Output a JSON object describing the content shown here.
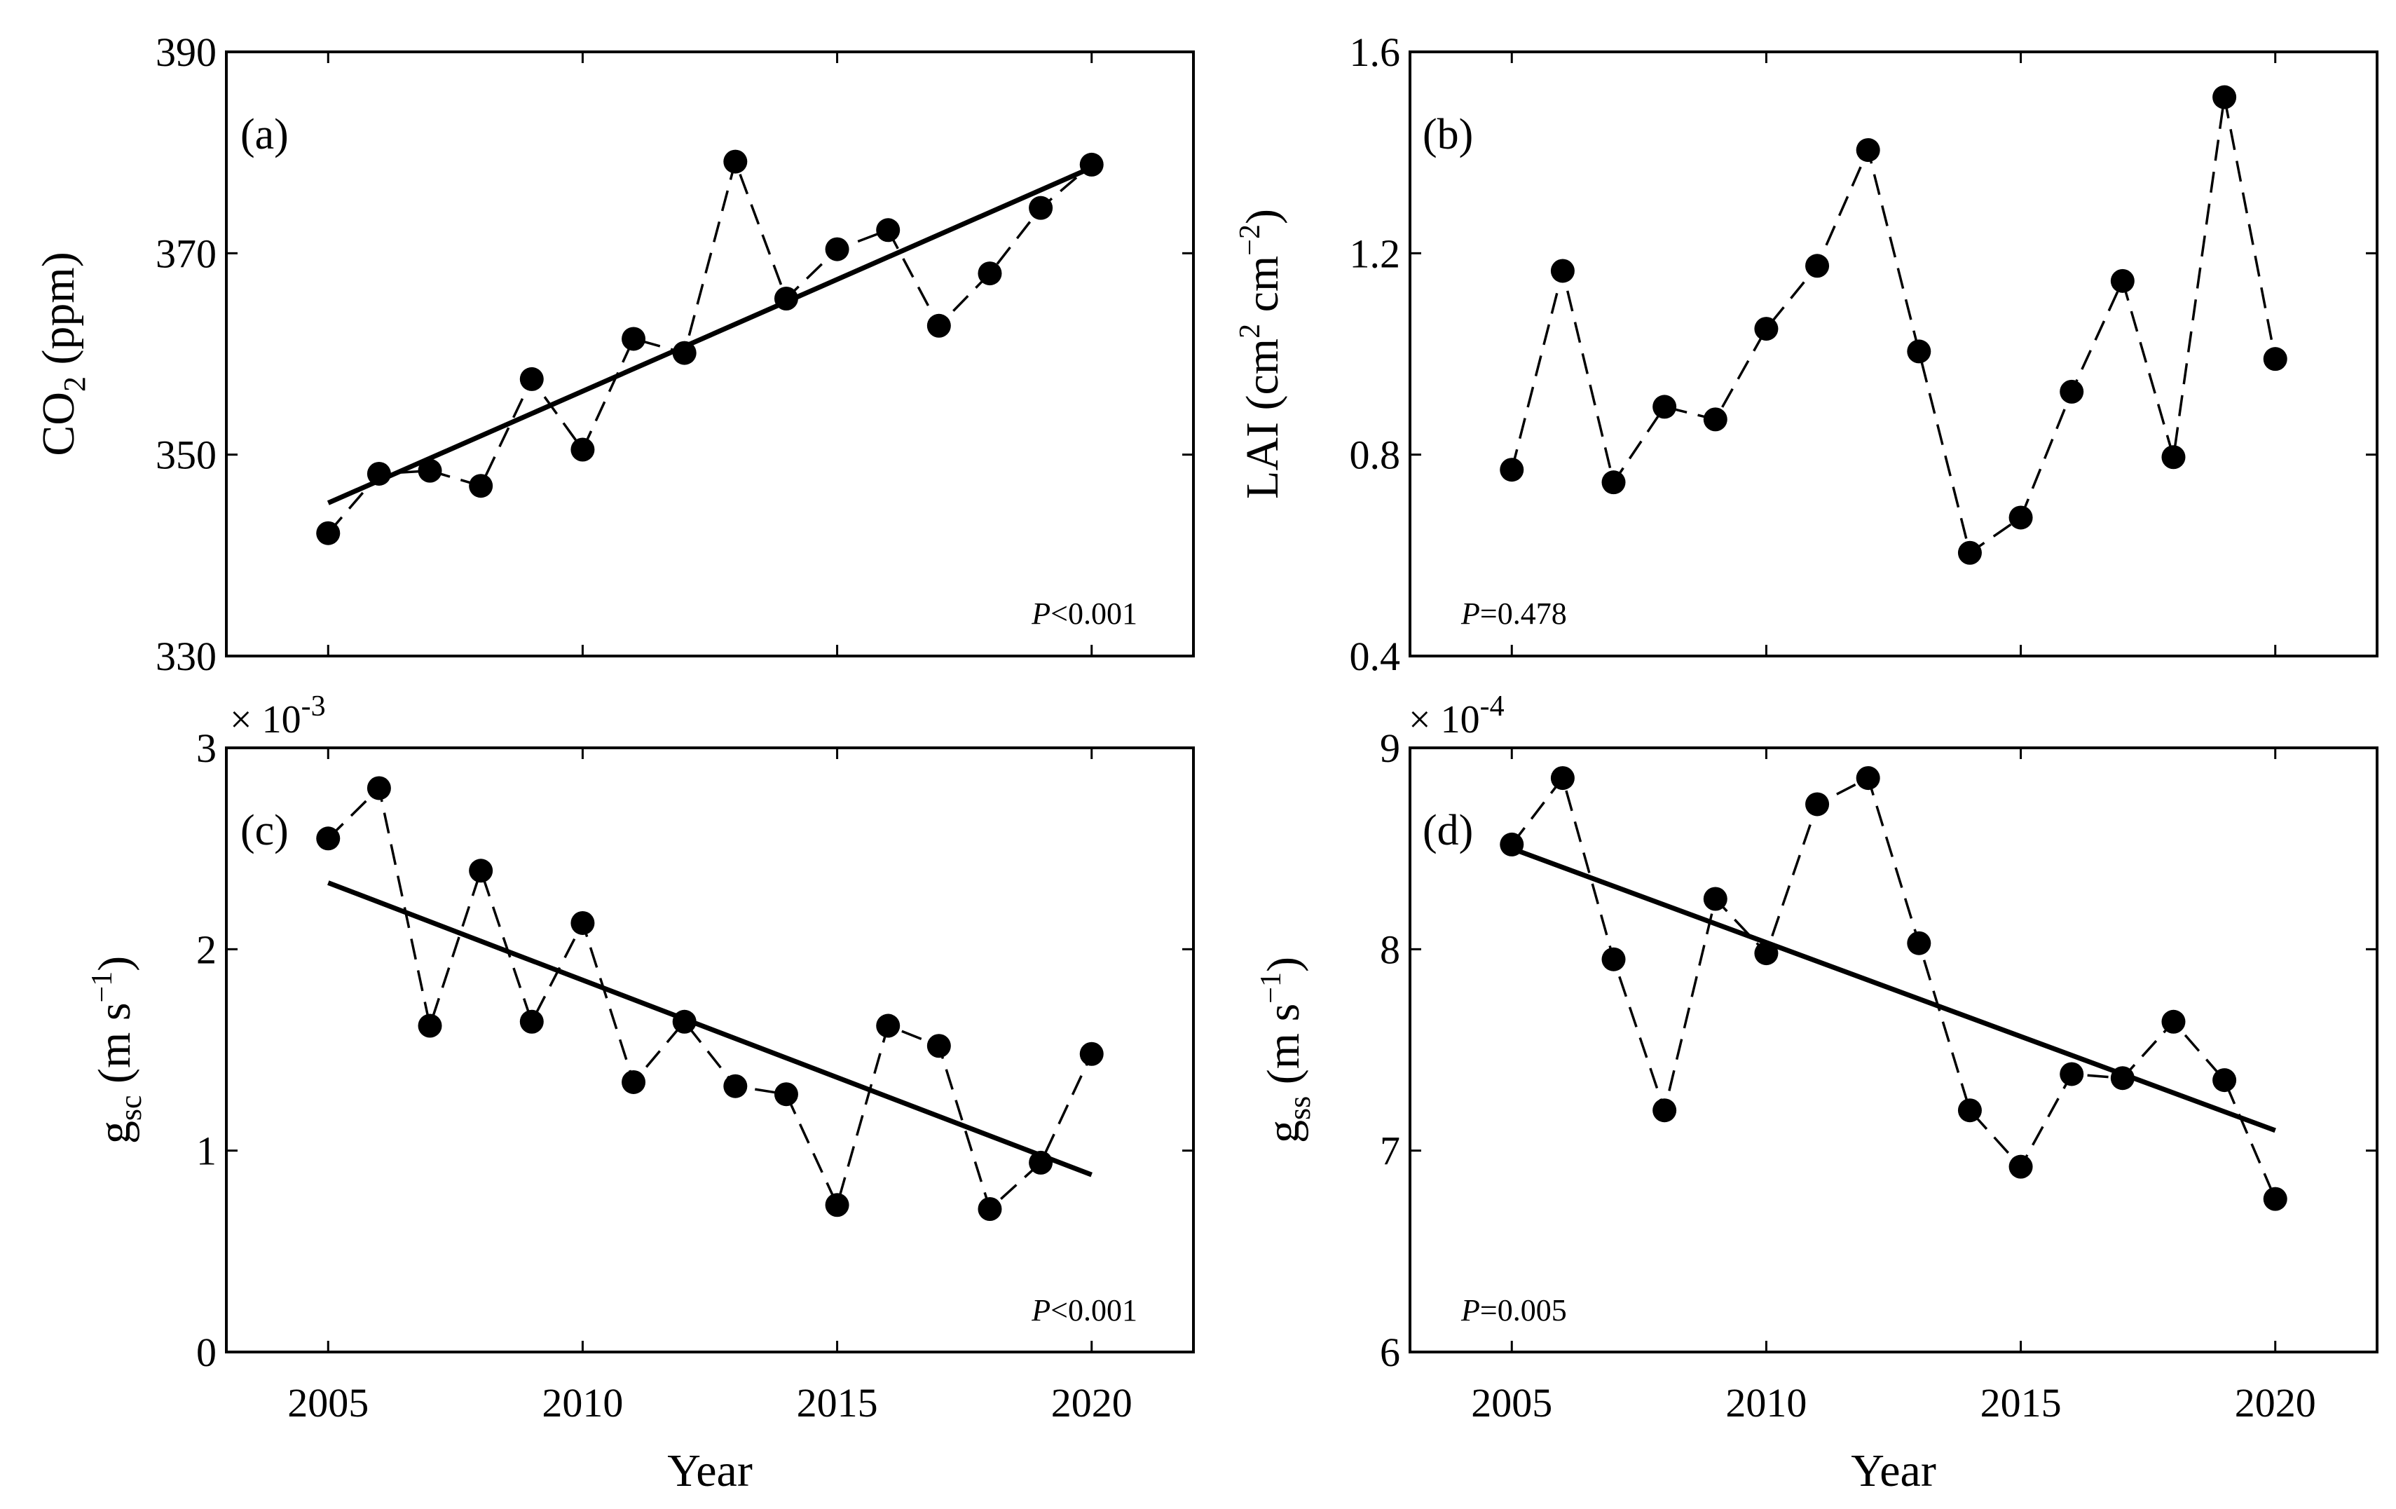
{
  "figure": {
    "xlabel": "Year",
    "years": [
      2005,
      2006,
      2007,
      2008,
      2009,
      2010,
      2011,
      2012,
      2013,
      2014,
      2015,
      2016,
      2017,
      2018,
      2019,
      2020
    ]
  },
  "chart_data": [
    {
      "type": "line",
      "panel": "(a)",
      "ylabel_main": "CO",
      "ylabel_sub": "2",
      "ylabel_rest": " (ppm)",
      "xlabel": "",
      "xlim": [
        2003,
        2022
      ],
      "ylim": [
        330,
        390
      ],
      "yticks": [
        330,
        350,
        370,
        390
      ],
      "ytick_labels": [
        "330",
        "350",
        "370",
        "390"
      ],
      "xticks": [
        2005,
        2010,
        2015,
        2020
      ],
      "xtick_labels": [],
      "exponent_label": "",
      "p_label_italic": "P",
      "p_label_rest": "<0.001",
      "p_position": "bottom-right",
      "series": [
        {
          "name": "CO2",
          "style": "dashed-markers",
          "x": [
            2005,
            2006,
            2007,
            2008,
            2009,
            2010,
            2011,
            2012,
            2013,
            2014,
            2015,
            2016,
            2017,
            2018,
            2019,
            2020
          ],
          "values": [
            342.2,
            348.1,
            348.4,
            346.9,
            357.5,
            350.5,
            361.5,
            360.1,
            379.1,
            365.5,
            370.4,
            372.3,
            362.8,
            368.0,
            374.5,
            378.8
          ]
        },
        {
          "name": "trend",
          "style": "solid",
          "x": [
            2005,
            2020
          ],
          "values": [
            345.2,
            378.5
          ]
        }
      ]
    },
    {
      "type": "line",
      "panel": "(b)",
      "ylabel_main": "LAI (cm",
      "ylabel_sup1": "2",
      "ylabel_mid": " cm",
      "ylabel_sup2": "−2",
      "ylabel_rest": ")",
      "xlabel": "",
      "xlim": [
        2003,
        2022
      ],
      "ylim": [
        0.4,
        1.6
      ],
      "yticks": [
        0.4,
        0.8,
        1.2,
        1.6
      ],
      "ytick_labels": [
        "0.4",
        "0.8",
        "1.2",
        "1.6"
      ],
      "xticks": [
        2005,
        2010,
        2015,
        2020
      ],
      "xtick_labels": [],
      "exponent_label": "",
      "p_label_italic": "P",
      "p_label_rest": "=0.478",
      "p_position": "bottom-left",
      "series": [
        {
          "name": "LAI",
          "style": "dashed-markers",
          "x": [
            2005,
            2006,
            2007,
            2008,
            2009,
            2010,
            2011,
            2012,
            2013,
            2014,
            2015,
            2016,
            2017,
            2018,
            2019,
            2020
          ],
          "values": [
            0.77,
            1.165,
            0.745,
            0.895,
            0.87,
            1.05,
            1.175,
            1.405,
            1.005,
            0.605,
            0.675,
            0.925,
            1.145,
            0.795,
            1.51,
            0.99
          ]
        }
      ]
    },
    {
      "type": "line",
      "panel": "(c)",
      "ylabel_main": "g",
      "ylabel_sub": "sc",
      "ylabel_rest": " (m s",
      "ylabel_sup2": "−1",
      "ylabel_end": ")",
      "xlabel": "Year",
      "xlim": [
        2003,
        2022
      ],
      "ylim": [
        0,
        3
      ],
      "yticks": [
        0,
        1,
        2,
        3
      ],
      "ytick_labels": [
        "0",
        "1",
        "2",
        "3"
      ],
      "xticks": [
        2005,
        2010,
        2015,
        2020
      ],
      "xtick_labels": [
        "2005",
        "2010",
        "2015",
        "2020"
      ],
      "exponent_label": "× 10",
      "exponent_power": "-3",
      "p_label_italic": "P",
      "p_label_rest": "<0.001",
      "p_position": "bottom-right",
      "series": [
        {
          "name": "gsc",
          "style": "dashed-markers",
          "x": [
            2005,
            2006,
            2007,
            2008,
            2009,
            2010,
            2011,
            2012,
            2013,
            2014,
            2015,
            2016,
            2017,
            2018,
            2019,
            2020
          ],
          "values": [
            2.55,
            2.8,
            1.62,
            2.39,
            1.64,
            2.13,
            1.34,
            1.64,
            1.32,
            1.28,
            0.73,
            1.62,
            1.52,
            0.71,
            0.94,
            1.48
          ]
        },
        {
          "name": "trend",
          "style": "solid",
          "x": [
            2005,
            2020
          ],
          "values": [
            2.33,
            0.88
          ]
        }
      ]
    },
    {
      "type": "line",
      "panel": "(d)",
      "ylabel_main": "g",
      "ylabel_sub": "ss",
      "ylabel_rest": " (m s",
      "ylabel_sup2": "−1",
      "ylabel_end": ")",
      "xlabel": "Year",
      "xlim": [
        2003,
        2022
      ],
      "ylim": [
        6,
        9
      ],
      "yticks": [
        6,
        7,
        8,
        9
      ],
      "ytick_labels": [
        "6",
        "7",
        "8",
        "9"
      ],
      "xticks": [
        2005,
        2010,
        2015,
        2020
      ],
      "xtick_labels": [
        "2005",
        "2010",
        "2015",
        "2020"
      ],
      "exponent_label": "× 10",
      "exponent_power": "-4",
      "p_label_italic": "P",
      "p_label_rest": "=0.005",
      "p_position": "bottom-left",
      "series": [
        {
          "name": "gss",
          "style": "dashed-markers",
          "x": [
            2005,
            2006,
            2007,
            2008,
            2009,
            2010,
            2011,
            2012,
            2013,
            2014,
            2015,
            2016,
            2017,
            2018,
            2019,
            2020
          ],
          "values": [
            8.52,
            8.85,
            7.95,
            7.2,
            8.25,
            7.98,
            8.72,
            8.85,
            8.03,
            7.2,
            6.92,
            7.38,
            7.36,
            7.64,
            7.35,
            6.76
          ]
        },
        {
          "name": "trend",
          "style": "solid",
          "x": [
            2005,
            2020
          ],
          "values": [
            8.5,
            7.1
          ]
        }
      ]
    }
  ]
}
